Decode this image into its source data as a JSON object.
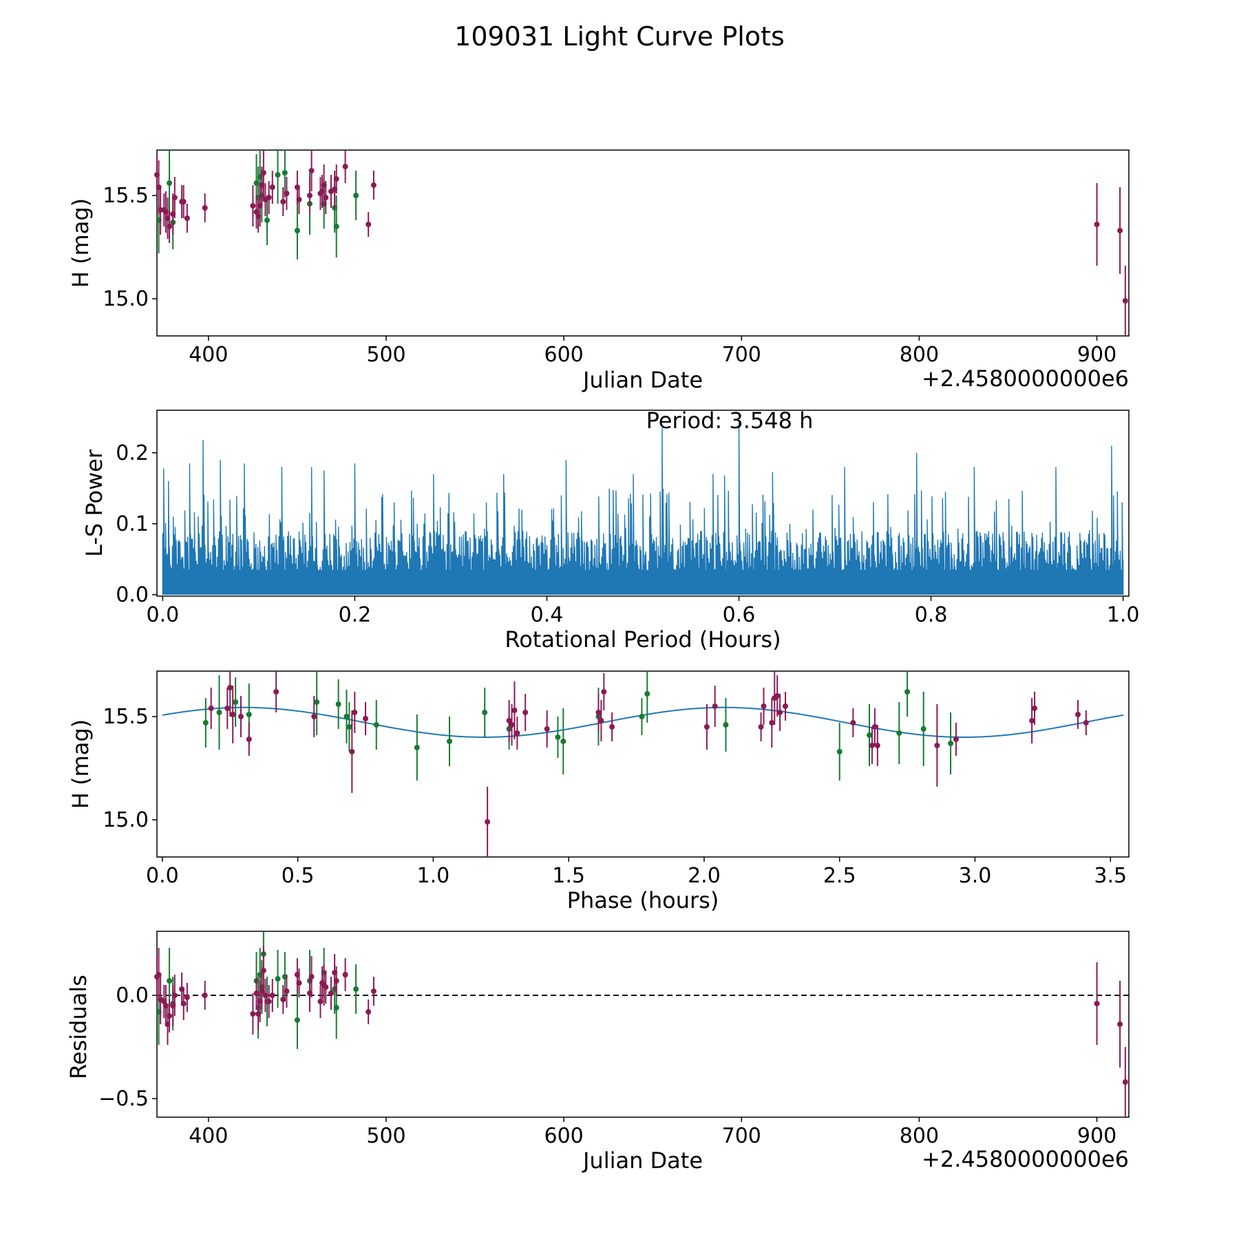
{
  "suptitle": "109031 Light Curve Plots",
  "colors": {
    "green": "#187a33",
    "purple": "#8b1a55",
    "line": "#1f77b4",
    "axis": "#000000",
    "residual_line": "#000000"
  },
  "chart_data": [
    {
      "id": "lightcurve",
      "type": "scatter",
      "xlabel": "Julian Date",
      "ylabel": "H (mag)",
      "offset_label": "+2.4580000000e6",
      "xlim": [
        371,
        918
      ],
      "ylim": [
        14.82,
        15.72
      ],
      "xticks": [
        400,
        500,
        600,
        700,
        800,
        900
      ],
      "yticks": [
        15.0,
        15.5
      ],
      "series": [
        {
          "name": "green",
          "points": [
            [
              372,
              15.38,
              0.16
            ],
            [
              378,
              15.56,
              0.16
            ],
            [
              380,
              15.37,
              0.13
            ],
            [
              427,
              15.56,
              0.14
            ],
            [
              428,
              15.49,
              0.15
            ],
            [
              429,
              15.59,
              0.13
            ],
            [
              430,
              15.5,
              0.13
            ],
            [
              433,
              15.38,
              0.12
            ],
            [
              439,
              15.6,
              0.14
            ],
            [
              443,
              15.61,
              0.12
            ],
            [
              450,
              15.33,
              0.14
            ],
            [
              457,
              15.46,
              0.15
            ],
            [
              465,
              15.46,
              0.12
            ],
            [
              471,
              15.44,
              0.12
            ],
            [
              472,
              15.35,
              0.15
            ],
            [
              483,
              15.5,
              0.12
            ]
          ]
        },
        {
          "name": "purple",
          "points": [
            [
              371,
              15.6,
              0.1
            ],
            [
              372,
              15.54,
              0.13
            ],
            [
              373,
              15.43,
              0.12
            ],
            [
              375,
              15.43,
              0.08
            ],
            [
              376,
              15.42,
              0.1
            ],
            [
              377,
              15.39,
              0.1
            ],
            [
              378,
              15.35,
              0.08
            ],
            [
              380,
              15.41,
              0.1
            ],
            [
              381,
              15.49,
              0.1
            ],
            [
              385,
              15.47,
              0.08
            ],
            [
              386,
              15.47,
              0.08
            ],
            [
              388,
              15.39,
              0.07
            ],
            [
              398,
              15.44,
              0.07
            ],
            [
              425,
              15.45,
              0.1
            ],
            [
              427,
              15.42,
              0.08
            ],
            [
              428,
              15.4,
              0.08
            ],
            [
              429,
              15.45,
              0.1
            ],
            [
              430,
              15.55,
              0.09
            ],
            [
              431,
              15.61,
              0.12
            ],
            [
              432,
              15.48,
              0.08
            ],
            [
              434,
              15.49,
              0.08
            ],
            [
              436,
              15.54,
              0.08
            ],
            [
              442,
              15.47,
              0.07
            ],
            [
              444,
              15.51,
              0.08
            ],
            [
              450,
              15.54,
              0.08
            ],
            [
              451,
              15.48,
              0.07
            ],
            [
              457,
              15.5,
              0.09
            ],
            [
              458,
              15.62,
              0.1
            ],
            [
              463,
              15.51,
              0.08
            ],
            [
              464,
              15.52,
              0.08
            ],
            [
              465,
              15.55,
              0.1
            ],
            [
              466,
              15.49,
              0.08
            ],
            [
              469,
              15.52,
              0.08
            ],
            [
              471,
              15.53,
              0.09
            ],
            [
              472,
              15.58,
              0.07
            ],
            [
              477,
              15.64,
              0.08
            ],
            [
              490,
              15.36,
              0.06
            ],
            [
              493,
              15.55,
              0.07
            ],
            [
              900,
              15.36,
              0.2
            ],
            [
              913,
              15.33,
              0.21
            ],
            [
              916,
              14.99,
              0.17
            ]
          ]
        }
      ]
    },
    {
      "id": "periodogram",
      "type": "line",
      "xlabel": "Rotational Period (Hours)",
      "ylabel": "L-S Power",
      "annotation": "Period: 3.548 h",
      "xlim": [
        -0.006,
        1.006
      ],
      "ylim": [
        -0.002,
        0.26
      ],
      "xticks": [
        0.0,
        0.2,
        0.4,
        0.6,
        0.8,
        1.0
      ],
      "yticks": [
        0.0,
        0.1,
        0.2
      ],
      "spike_count": 1000,
      "seed": 1234567,
      "peaks": [
        [
          0.001,
          0.178
        ],
        [
          0.006,
          0.16
        ],
        [
          0.042,
          0.218
        ],
        [
          0.028,
          0.185
        ],
        [
          0.06,
          0.19
        ],
        [
          0.085,
          0.185
        ],
        [
          0.124,
          0.18
        ],
        [
          0.155,
          0.18
        ],
        [
          0.168,
          0.175
        ],
        [
          0.2,
          0.185
        ],
        [
          0.282,
          0.17
        ],
        [
          0.355,
          0.17
        ],
        [
          0.42,
          0.19
        ],
        [
          0.49,
          0.17
        ],
        [
          0.52,
          0.235
        ],
        [
          0.573,
          0.17
        ],
        [
          0.585,
          0.168
        ],
        [
          0.6,
          0.243
        ],
        [
          0.635,
          0.173
        ],
        [
          0.71,
          0.18
        ],
        [
          0.785,
          0.2
        ],
        [
          0.845,
          0.18
        ],
        [
          0.93,
          0.18
        ],
        [
          0.988,
          0.21
        ],
        [
          0.999,
          0.13
        ]
      ]
    },
    {
      "id": "phased",
      "type": "scatter",
      "xlabel": "Phase (hours)",
      "ylabel": "H (mag)",
      "xlim": [
        -0.02,
        3.568
      ],
      "ylim": [
        14.82,
        15.72
      ],
      "xticks": [
        0.0,
        0.5,
        1.0,
        1.5,
        2.0,
        2.5,
        3.0,
        3.5
      ],
      "yticks": [
        15.0,
        15.5
      ],
      "fit": {
        "period": 3.548,
        "mean": 15.472,
        "amplitude": 0.072,
        "peak_phase": 0.3,
        "harmonic": 2
      },
      "series": [
        {
          "name": "green",
          "points": [
            [
              0.16,
              15.47,
              0.12
            ],
            [
              0.21,
              15.52,
              0.18
            ],
            [
              0.27,
              15.57,
              0.12
            ],
            [
              0.32,
              15.51,
              0.15
            ],
            [
              0.57,
              15.57,
              0.16
            ],
            [
              0.65,
              15.56,
              0.12
            ],
            [
              0.68,
              15.5,
              0.13
            ],
            [
              0.69,
              15.45,
              0.12
            ],
            [
              0.79,
              15.46,
              0.12
            ],
            [
              0.94,
              15.35,
              0.16
            ],
            [
              1.06,
              15.38,
              0.12
            ],
            [
              1.19,
              15.52,
              0.12
            ],
            [
              1.28,
              15.44,
              0.1
            ],
            [
              1.46,
              15.4,
              0.1
            ],
            [
              1.48,
              15.38,
              0.16
            ],
            [
              1.61,
              15.5,
              0.14
            ],
            [
              1.77,
              15.5,
              0.09
            ],
            [
              1.79,
              15.61,
              0.14
            ],
            [
              2.08,
              15.46,
              0.13
            ],
            [
              2.5,
              15.33,
              0.14
            ],
            [
              2.61,
              15.41,
              0.15
            ],
            [
              2.72,
              15.42,
              0.15
            ],
            [
              2.75,
              15.62,
              0.12
            ],
            [
              2.81,
              15.44,
              0.18
            ],
            [
              2.91,
              15.37,
              0.15
            ]
          ]
        },
        {
          "name": "purple",
          "points": [
            [
              0.18,
              15.54,
              0.1
            ],
            [
              0.24,
              15.54,
              0.1
            ],
            [
              0.25,
              15.64,
              0.14
            ],
            [
              0.26,
              15.51,
              0.14
            ],
            [
              0.29,
              15.5,
              0.1
            ],
            [
              0.32,
              15.39,
              0.08
            ],
            [
              0.42,
              15.62,
              0.1
            ],
            [
              0.56,
              15.5,
              0.1
            ],
            [
              0.7,
              15.33,
              0.2
            ],
            [
              0.71,
              15.52,
              0.1
            ],
            [
              0.75,
              15.49,
              0.08
            ],
            [
              1.2,
              14.99,
              0.17
            ],
            [
              1.28,
              15.48,
              0.1
            ],
            [
              1.29,
              15.46,
              0.1
            ],
            [
              1.3,
              15.53,
              0.14
            ],
            [
              1.31,
              15.42,
              0.08
            ],
            [
              1.34,
              15.52,
              0.09
            ],
            [
              1.42,
              15.44,
              0.09
            ],
            [
              1.61,
              15.52,
              0.09
            ],
            [
              1.62,
              15.48,
              0.1
            ],
            [
              1.63,
              15.62,
              0.09
            ],
            [
              1.66,
              15.45,
              0.07
            ],
            [
              2.01,
              15.45,
              0.11
            ],
            [
              2.04,
              15.55,
              0.1
            ],
            [
              2.21,
              15.45,
              0.07
            ],
            [
              2.22,
              15.55,
              0.09
            ],
            [
              2.25,
              15.47,
              0.12
            ],
            [
              2.26,
              15.59,
              0.13
            ],
            [
              2.27,
              15.6,
              0.1
            ],
            [
              2.28,
              15.52,
              0.09
            ],
            [
              2.3,
              15.55,
              0.07
            ],
            [
              2.55,
              15.47,
              0.07
            ],
            [
              2.62,
              15.36,
              0.09
            ],
            [
              2.63,
              15.45,
              0.09
            ],
            [
              2.64,
              15.36,
              0.1
            ],
            [
              2.86,
              15.36,
              0.2
            ],
            [
              2.93,
              15.39,
              0.08
            ],
            [
              3.21,
              15.48,
              0.11
            ],
            [
              3.22,
              15.54,
              0.08
            ],
            [
              3.38,
              15.51,
              0.07
            ],
            [
              3.41,
              15.47,
              0.06
            ]
          ]
        }
      ]
    },
    {
      "id": "residuals",
      "type": "scatter",
      "xlabel": "Julian Date",
      "ylabel": "Residuals",
      "offset_label": "+2.4580000000e6",
      "xlim": [
        371,
        918
      ],
      "ylim": [
        -0.59,
        0.31
      ],
      "xticks": [
        400,
        500,
        600,
        700,
        800,
        900
      ],
      "yticks": [
        -0.5,
        0.0
      ],
      "hline": 0.0,
      "series": [
        {
          "name": "green",
          "points": [
            [
              372,
              -0.08,
              0.16
            ],
            [
              378,
              0.07,
              0.16
            ],
            [
              380,
              -0.04,
              0.13
            ],
            [
              427,
              0.07,
              0.14
            ],
            [
              428,
              -0.06,
              0.15
            ],
            [
              429,
              0.1,
              0.13
            ],
            [
              430,
              0.04,
              0.13
            ],
            [
              431,
              0.2,
              0.12
            ],
            [
              433,
              -0.03,
              0.12
            ],
            [
              439,
              0.08,
              0.14
            ],
            [
              443,
              0.09,
              0.12
            ],
            [
              450,
              -0.12,
              0.14
            ],
            [
              457,
              0.07,
              0.15
            ],
            [
              465,
              0.11,
              0.12
            ],
            [
              471,
              0.03,
              0.12
            ],
            [
              472,
              -0.06,
              0.15
            ],
            [
              483,
              0.03,
              0.12
            ]
          ]
        },
        {
          "name": "purple",
          "points": [
            [
              371,
              0.09,
              0.1
            ],
            [
              372,
              0.1,
              0.13
            ],
            [
              373,
              -0.02,
              0.12
            ],
            [
              375,
              -0.03,
              0.08
            ],
            [
              376,
              -0.05,
              0.1
            ],
            [
              377,
              -0.14,
              0.1
            ],
            [
              378,
              -0.1,
              0.08
            ],
            [
              380,
              -0.05,
              0.1
            ],
            [
              381,
              0.0,
              0.1
            ],
            [
              385,
              0.03,
              0.08
            ],
            [
              386,
              -0.04,
              0.08
            ],
            [
              388,
              -0.01,
              0.07
            ],
            [
              398,
              0.0,
              0.07
            ],
            [
              425,
              -0.09,
              0.1
            ],
            [
              427,
              0.01,
              0.08
            ],
            [
              428,
              -0.09,
              0.08
            ],
            [
              429,
              -0.03,
              0.1
            ],
            [
              430,
              0.02,
              0.09
            ],
            [
              431,
              0.12,
              0.12
            ],
            [
              432,
              0.0,
              0.08
            ],
            [
              434,
              -0.03,
              0.08
            ],
            [
              436,
              0.0,
              0.08
            ],
            [
              442,
              -0.02,
              0.07
            ],
            [
              444,
              0.02,
              0.08
            ],
            [
              450,
              0.1,
              0.08
            ],
            [
              451,
              0.06,
              0.07
            ],
            [
              457,
              0.01,
              0.09
            ],
            [
              458,
              0.09,
              0.1
            ],
            [
              463,
              -0.03,
              0.08
            ],
            [
              464,
              0.06,
              0.08
            ],
            [
              465,
              0.05,
              0.1
            ],
            [
              466,
              0.04,
              0.08
            ],
            [
              469,
              0.01,
              0.08
            ],
            [
              471,
              0.11,
              0.09
            ],
            [
              472,
              0.07,
              0.07
            ],
            [
              477,
              0.1,
              0.08
            ],
            [
              490,
              -0.08,
              0.06
            ],
            [
              493,
              0.02,
              0.07
            ],
            [
              900,
              -0.04,
              0.2
            ],
            [
              913,
              -0.14,
              0.21
            ],
            [
              916,
              -0.42,
              0.17
            ]
          ]
        }
      ]
    }
  ]
}
